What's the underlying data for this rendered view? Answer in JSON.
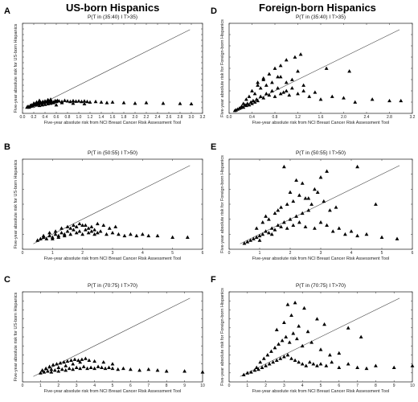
{
  "column_titles": [
    "US-born Hispanics",
    "Foreign-born Hispanics"
  ],
  "panel_letters": [
    "A",
    "B",
    "C",
    "D",
    "E",
    "F"
  ],
  "chart_data": [
    {
      "type": "scatter",
      "panel": "A",
      "title": "P(T in (35:40) I T>35)",
      "xlabel": "Five-year absolute risk from NCI Breast Cancer Risk Assessment Tool",
      "ylabel": "Five-year absolute risk for US-born Hispanics",
      "xlim": [
        0,
        3.2
      ],
      "ylim": [
        0,
        3.2
      ],
      "xticks": [
        0.0,
        0.2,
        0.4,
        0.6,
        0.8,
        1.0,
        1.2,
        1.4,
        1.6,
        1.8,
        2.0,
        2.2,
        2.4,
        2.6,
        2.8,
        3.0,
        3.2
      ],
      "xtick_labels": [
        "0.0",
        "0.2",
        "0.4",
        "0.6",
        "0.8",
        "1.0",
        "1.2",
        "1.4",
        "1.6",
        "1.8",
        "2.0",
        "2.2",
        "2.4",
        "2.6",
        "2.8",
        "3.0",
        "3.2"
      ],
      "identity_line": true,
      "x": [
        0.08,
        0.1,
        0.12,
        0.14,
        0.15,
        0.16,
        0.18,
        0.2,
        0.22,
        0.24,
        0.25,
        0.26,
        0.28,
        0.3,
        0.32,
        0.34,
        0.36,
        0.38,
        0.4,
        0.42,
        0.44,
        0.46,
        0.48,
        0.5,
        0.52,
        0.55,
        0.58,
        0.6,
        0.62,
        0.65,
        0.7,
        0.75,
        0.8,
        0.85,
        0.9,
        0.95,
        1.0,
        1.05,
        1.1,
        1.15,
        1.2,
        1.3,
        1.4,
        1.5,
        1.6,
        1.8,
        2.0,
        2.2,
        2.5,
        2.8,
        3.0,
        0.3,
        0.35,
        0.4,
        0.45,
        0.5,
        0.55,
        0.6,
        0.2,
        0.25,
        0.3,
        0.45,
        0.5,
        0.7,
        0.9,
        1.1
      ],
      "y": [
        0.22,
        0.25,
        0.22,
        0.28,
        0.25,
        0.3,
        0.27,
        0.3,
        0.33,
        0.3,
        0.36,
        0.33,
        0.38,
        0.35,
        0.4,
        0.36,
        0.42,
        0.38,
        0.44,
        0.4,
        0.42,
        0.46,
        0.4,
        0.44,
        0.42,
        0.4,
        0.45,
        0.42,
        0.46,
        0.44,
        0.42,
        0.46,
        0.44,
        0.42,
        0.45,
        0.43,
        0.44,
        0.42,
        0.44,
        0.42,
        0.4,
        0.42,
        0.4,
        0.38,
        0.4,
        0.38,
        0.36,
        0.38,
        0.36,
        0.35,
        0.34,
        0.28,
        0.3,
        0.32,
        0.34,
        0.36,
        0.38,
        0.3,
        0.36,
        0.4,
        0.46,
        0.48,
        0.5,
        0.38,
        0.36,
        0.34
      ]
    },
    {
      "type": "scatter",
      "panel": "B",
      "title": "P(T in (50:55) I T>50)",
      "xlabel": "Five-year absolute risk from NCI Breast Cancer Risk Assessment Tool",
      "ylabel": "Five-year absolute risk for US-born Hispanics",
      "xlim": [
        0,
        6
      ],
      "ylim": [
        0,
        6
      ],
      "xticks": [
        0,
        1,
        2,
        3,
        4,
        5,
        6
      ],
      "xtick_labels": [
        "0",
        "1",
        "2",
        "3",
        "4",
        "5",
        "6"
      ],
      "identity_line": true,
      "x": [
        0.5,
        0.6,
        0.7,
        0.8,
        0.9,
        1.0,
        1.1,
        1.2,
        1.3,
        1.4,
        1.5,
        1.6,
        1.7,
        1.8,
        1.9,
        2.0,
        2.1,
        2.2,
        2.3,
        2.4,
        2.5,
        2.6,
        2.8,
        3.0,
        3.2,
        3.4,
        3.6,
        3.8,
        4.0,
        4.2,
        4.5,
        5.0,
        5.5,
        0.7,
        0.9,
        1.1,
        1.3,
        1.5,
        1.7,
        1.9,
        2.1,
        2.3,
        2.5,
        2.7,
        2.9,
        3.1,
        1.0,
        1.2,
        1.4,
        1.6,
        1.8,
        2.0,
        2.2,
        2.4
      ],
      "y": [
        0.6,
        0.7,
        0.8,
        0.7,
        0.9,
        0.8,
        1.0,
        0.9,
        1.1,
        1.0,
        1.2,
        1.0,
        1.3,
        1.1,
        1.2,
        1.0,
        1.3,
        1.1,
        1.2,
        1.0,
        1.1,
        1.2,
        1.0,
        1.1,
        1.0,
        0.9,
        1.0,
        0.9,
        1.0,
        0.9,
        0.9,
        0.8,
        0.8,
        0.9,
        1.1,
        1.2,
        1.4,
        1.5,
        1.6,
        1.7,
        1.6,
        1.5,
        1.7,
        1.6,
        1.4,
        1.5,
        0.7,
        0.8,
        0.9,
        1.4,
        1.5,
        1.6,
        1.4,
        1.3
      ]
    },
    {
      "type": "scatter",
      "panel": "C",
      "title": "P(T in (70:75) I T>70)",
      "xlabel": "Five-year absolute risk from NCI Breast Cancer Risk Assessment Tool",
      "ylabel": "Five-year absolute risk for US-born Hispanics",
      "xlim": [
        0,
        10
      ],
      "ylim": [
        0,
        10
      ],
      "xticks": [
        0,
        1,
        2,
        3,
        4,
        5,
        6,
        7,
        8,
        9,
        10
      ],
      "xtick_labels": [
        "0",
        "1",
        "2",
        "3",
        "4",
        "5",
        "6",
        "7",
        "8",
        "9",
        "10"
      ],
      "identity_line": true,
      "x": [
        1.0,
        1.2,
        1.4,
        1.6,
        1.8,
        2.0,
        2.2,
        2.4,
        2.6,
        2.8,
        3.0,
        3.2,
        3.4,
        3.6,
        3.8,
        4.0,
        4.2,
        4.4,
        4.6,
        4.8,
        5.0,
        5.3,
        5.6,
        6.0,
        6.5,
        7.0,
        7.5,
        8.0,
        9.0,
        10.0,
        1.3,
        1.5,
        1.7,
        1.9,
        2.1,
        2.3,
        2.5,
        2.7,
        2.9,
        3.1,
        3.3,
        3.5,
        3.7,
        4.0,
        4.5,
        5.0,
        1.1,
        1.6,
        2.0,
        2.4,
        2.8,
        3.2
      ],
      "y": [
        1.0,
        1.1,
        1.2,
        1.1,
        1.3,
        1.2,
        1.4,
        1.3,
        1.5,
        1.4,
        1.6,
        1.5,
        1.7,
        1.5,
        1.6,
        1.5,
        1.7,
        1.6,
        1.5,
        1.6,
        1.5,
        1.4,
        1.5,
        1.4,
        1.3,
        1.4,
        1.3,
        1.2,
        1.2,
        1.1,
        1.5,
        1.7,
        1.9,
        2.0,
        2.1,
        2.2,
        2.3,
        2.4,
        2.5,
        2.4,
        2.5,
        2.6,
        2.4,
        2.3,
        2.2,
        2.0,
        1.3,
        1.4,
        1.6,
        1.8,
        2.0,
        2.2
      ]
    },
    {
      "type": "scatter",
      "panel": "D",
      "title": "P(T in (35:40) I T>35)",
      "xlabel": "Five-year absolute risk from NCI Breast Cancer Risk Assessment Tool",
      "ylabel": "Five-year absolute risk for Foreign-born Hispanics",
      "xlim": [
        0,
        3.2
      ],
      "ylim": [
        0,
        3.2
      ],
      "xticks": [
        0.0,
        0.4,
        0.8,
        1.2,
        1.6,
        2.0,
        2.4,
        2.8,
        3.2
      ],
      "xtick_labels": [
        "0.0",
        "0.4",
        "0.8",
        "1.2",
        "1.6",
        "2.0",
        "2.4",
        "2.8",
        "3.2"
      ],
      "identity_line": true,
      "x": [
        0.1,
        0.12,
        0.15,
        0.18,
        0.2,
        0.22,
        0.25,
        0.28,
        0.3,
        0.32,
        0.35,
        0.38,
        0.4,
        0.42,
        0.45,
        0.48,
        0.5,
        0.55,
        0.6,
        0.65,
        0.7,
        0.75,
        0.8,
        0.85,
        0.9,
        0.95,
        1.0,
        1.05,
        1.1,
        1.2,
        1.3,
        1.4,
        1.5,
        1.6,
        1.8,
        2.0,
        2.2,
        2.5,
        2.8,
        3.0,
        0.3,
        0.35,
        0.4,
        0.5,
        0.6,
        0.7,
        0.8,
        0.9,
        1.0,
        1.1,
        1.2,
        1.3,
        0.45,
        0.55,
        0.65,
        0.75,
        0.85,
        1.15,
        1.25,
        1.7,
        2.1,
        0.25,
        0.5,
        0.6,
        0.9,
        1.0
      ],
      "y": [
        0.1,
        0.12,
        0.15,
        0.18,
        0.2,
        0.25,
        0.22,
        0.3,
        0.28,
        0.35,
        0.3,
        0.4,
        0.35,
        0.45,
        0.4,
        0.5,
        0.45,
        0.6,
        0.55,
        0.7,
        0.65,
        0.8,
        0.6,
        0.9,
        0.7,
        0.75,
        0.8,
        0.65,
        0.9,
        0.7,
        0.8,
        0.6,
        0.75,
        0.5,
        0.6,
        0.55,
        0.4,
        0.5,
        0.45,
        0.45,
        0.5,
        0.6,
        0.8,
        1.0,
        1.2,
        1.4,
        1.6,
        1.3,
        1.1,
        1.2,
        1.5,
        1.0,
        0.7,
        0.9,
        1.0,
        1.1,
        1.3,
        2.0,
        2.1,
        1.6,
        1.5,
        0.35,
        1.1,
        1.25,
        1.7,
        1.9
      ]
    },
    {
      "type": "scatter",
      "panel": "E",
      "title": "P(T in (50:55) I T>50)",
      "xlabel": "Five-year absolute risk from NCI Breast Cancer Risk Assessment Tool",
      "ylabel": "Five-year absolute risk for Foreign-born Hispanics",
      "xlim": [
        0,
        6
      ],
      "ylim": [
        0,
        6
      ],
      "xticks": [
        0,
        1,
        2,
        3,
        4,
        5,
        6
      ],
      "xtick_labels": [
        "0",
        "1",
        "2",
        "3",
        "4",
        "5",
        "6"
      ],
      "identity_line": true,
      "x": [
        0.5,
        0.6,
        0.7,
        0.8,
        0.9,
        1.0,
        1.1,
        1.2,
        1.3,
        1.4,
        1.5,
        1.6,
        1.7,
        1.8,
        1.9,
        2.0,
        2.1,
        2.2,
        2.3,
        2.4,
        2.5,
        2.6,
        2.8,
        3.0,
        3.2,
        3.4,
        3.6,
        3.8,
        4.0,
        4.2,
        4.5,
        5.0,
        5.5,
        0.9,
        1.1,
        1.3,
        1.5,
        1.7,
        1.9,
        2.1,
        2.3,
        2.5,
        2.7,
        2.9,
        3.1,
        3.3,
        3.5,
        1.2,
        1.6,
        2.0,
        2.4,
        2.8,
        3.2,
        1.8,
        2.2,
        2.6,
        3.0,
        4.2,
        4.8,
        1.4,
        1.0
      ],
      "y": [
        0.4,
        0.5,
        0.6,
        0.7,
        0.8,
        0.9,
        1.0,
        1.2,
        1.1,
        1.4,
        1.3,
        1.6,
        1.5,
        1.8,
        1.4,
        2.0,
        1.6,
        2.2,
        1.8,
        2.4,
        1.5,
        2.6,
        1.4,
        1.8,
        1.6,
        1.2,
        1.4,
        1.0,
        1.2,
        0.9,
        1.0,
        0.8,
        0.7,
        1.4,
        1.8,
        2.0,
        2.4,
        2.8,
        3.0,
        3.2,
        3.6,
        3.4,
        3.0,
        3.8,
        3.2,
        2.6,
        2.8,
        2.2,
        2.6,
        3.8,
        4.4,
        4.0,
        5.2,
        5.5,
        4.6,
        3.4,
        4.8,
        5.5,
        3.0,
        1.0,
        0.6
      ]
    },
    {
      "type": "scatter",
      "panel": "F",
      "title": "P(T in (70:75) I T>70)",
      "xlabel": "Five-year absolute risk from NCI Breast Cancer Risk Assessment Tool",
      "ylabel": "Five-year absolute risk for Foreign-born Hispanics",
      "xlim": [
        0,
        10
      ],
      "ylim": [
        0,
        10
      ],
      "xticks": [
        0,
        1,
        2,
        3,
        4,
        5,
        6,
        7,
        8,
        9,
        10
      ],
      "xtick_labels": [
        "0",
        "1",
        "2",
        "3",
        "4",
        "5",
        "6",
        "7",
        "8",
        "9",
        "10"
      ],
      "identity_line": true,
      "x": [
        0.8,
        1.0,
        1.2,
        1.4,
        1.6,
        1.8,
        2.0,
        2.2,
        2.4,
        2.6,
        2.8,
        3.0,
        3.2,
        3.4,
        3.6,
        3.8,
        4.0,
        4.2,
        4.4,
        4.6,
        4.8,
        5.0,
        5.3,
        5.6,
        6.0,
        6.5,
        7.0,
        7.5,
        8.0,
        9.0,
        10.0,
        1.5,
        1.7,
        1.9,
        2.1,
        2.3,
        2.5,
        2.7,
        2.9,
        3.1,
        3.3,
        3.5,
        3.7,
        4.0,
        4.5,
        5.0,
        5.5,
        6.0,
        2.6,
        3.0,
        3.4,
        3.8,
        4.3,
        4.8,
        3.2,
        3.6,
        4.1,
        5.2,
        6.5,
        7.2
      ],
      "y": [
        0.8,
        1.0,
        1.1,
        1.3,
        1.4,
        1.6,
        1.8,
        2.0,
        2.2,
        2.4,
        2.6,
        2.8,
        3.0,
        2.6,
        2.4,
        2.2,
        2.0,
        1.8,
        2.2,
        2.0,
        1.8,
        2.0,
        1.8,
        2.2,
        1.6,
        2.0,
        1.6,
        1.5,
        1.8,
        1.6,
        1.8,
        1.6,
        2.2,
        2.6,
        3.0,
        3.4,
        3.8,
        4.2,
        4.6,
        5.0,
        4.4,
        5.4,
        4.8,
        4.0,
        4.4,
        3.6,
        3.0,
        3.2,
        5.8,
        6.6,
        7.4,
        6.2,
        5.6,
        7.0,
        8.6,
        8.8,
        8.2,
        6.4,
        6.0,
        5.0
      ]
    }
  ]
}
